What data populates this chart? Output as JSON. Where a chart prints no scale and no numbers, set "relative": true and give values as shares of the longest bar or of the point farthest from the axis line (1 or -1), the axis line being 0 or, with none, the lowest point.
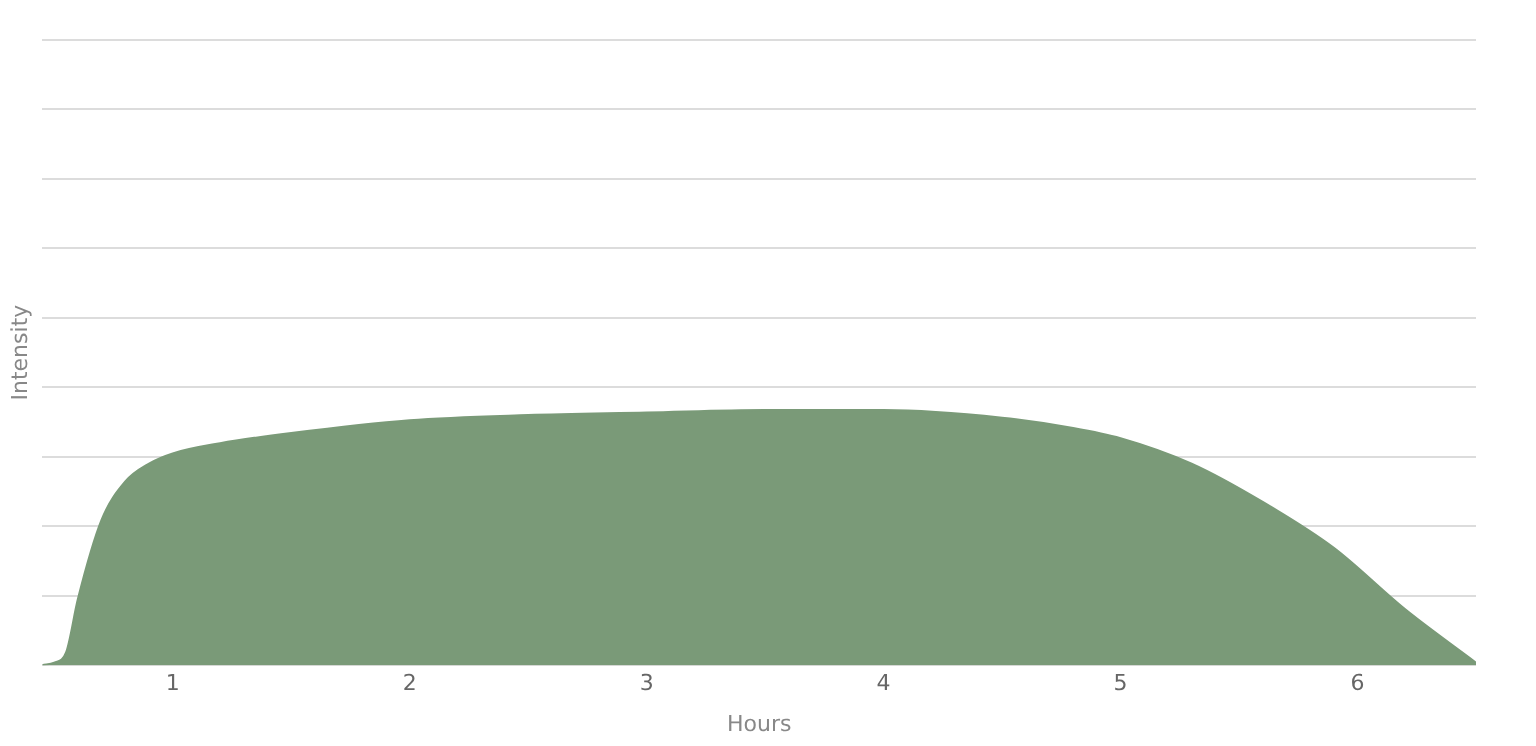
{
  "chart_data": {
    "type": "area",
    "xlabel": "Hours",
    "ylabel": "Intensity",
    "relative": true,
    "color": "#7a9a78",
    "grid": "y",
    "marker": "none",
    "x": [
      0.45,
      0.5,
      0.55,
      0.6,
      0.7,
      0.8,
      0.9,
      1.0,
      1.2,
      1.5,
      2.0,
      2.5,
      3.0,
      3.5,
      4.0,
      4.5,
      4.8,
      5.0,
      5.3,
      5.6,
      5.9,
      6.2,
      6.5
    ],
    "values": [
      0,
      0.01,
      0.05,
      0.26,
      0.57,
      0.72,
      0.79,
      0.83,
      0.87,
      0.91,
      0.96,
      0.98,
      0.99,
      1,
      1,
      0.97,
      0.93,
      0.89,
      0.79,
      0.64,
      0.46,
      0.22,
      0.01
    ],
    "xlim": [
      0.45,
      6.5
    ],
    "xticks": [
      1,
      2,
      3,
      4,
      5,
      6
    ]
  }
}
